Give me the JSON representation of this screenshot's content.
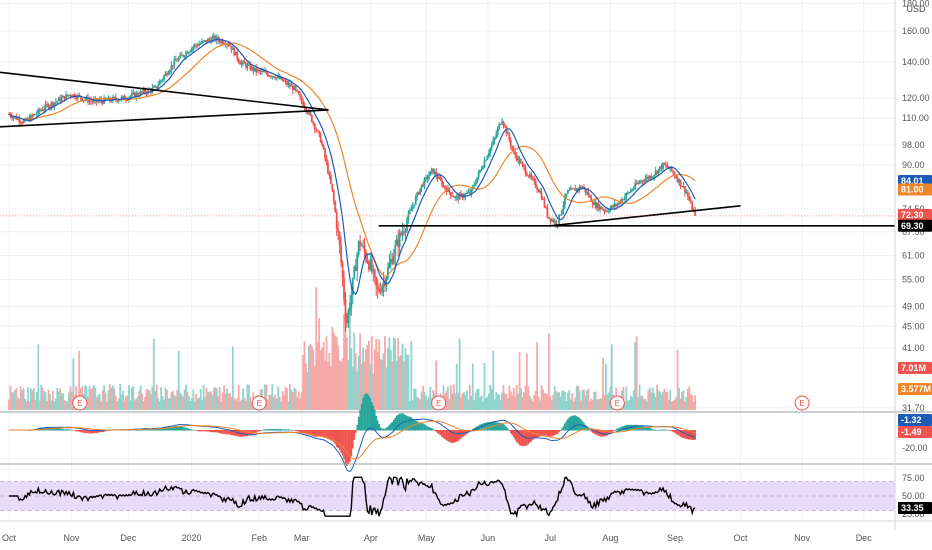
{
  "currency": "USD",
  "price_axis": {
    "ticks": [
      "180.00",
      "160.00",
      "140.00",
      "120.00",
      "110.00",
      "98.00",
      "90.00",
      "74.50",
      "67.50",
      "61.00",
      "55.00",
      "49.00",
      "45.00",
      "41.00",
      "31.70"
    ],
    "scale": "log"
  },
  "price_badges": [
    {
      "text": "84.01",
      "bg": "#1e5bb8",
      "fg": "#ffffff"
    },
    {
      "text": "81.00",
      "bg": "#f0852a",
      "fg": "#ffffff"
    },
    {
      "text": "72.30",
      "bg": "#ef5350",
      "fg": "#ffffff"
    },
    {
      "text": "69.30",
      "bg": "#000000",
      "fg": "#ffffff"
    }
  ],
  "volume_badges": [
    {
      "text": "7.01M",
      "bg": "#ef5350",
      "fg": "#ffffff"
    },
    {
      "text": "3.577M",
      "bg": "#f0852a",
      "fg": "#ffffff"
    }
  ],
  "macd_axis": {
    "ticks": [
      "-20.00"
    ]
  },
  "macd_badges": [
    {
      "text": "-1.32",
      "bg": "#1e5bb8",
      "fg": "#ffffff"
    },
    {
      "text": "-1.49",
      "bg": "#ef5350",
      "fg": "#ffffff"
    }
  ],
  "rsi_axis": {
    "ticks": [
      "75.00",
      "50.00",
      "25.00"
    ]
  },
  "rsi_badge": {
    "text": "33.35",
    "bg": "#000000",
    "fg": "#ffffff"
  },
  "time_axis": [
    "Oct",
    "Nov",
    "Dec",
    "2020",
    "Feb",
    "Mar",
    "Apr",
    "May",
    "Jun",
    "Jul",
    "Aug",
    "Sep",
    "Oct",
    "Nov",
    "Dec"
  ],
  "earnings_marker": "E",
  "colors": {
    "up": "#26a69a",
    "down": "#ef5350",
    "ma_fast": "#1e5bb8",
    "ma_slow": "#f0852a",
    "rsi_band": "#e9dcf8",
    "trendline": "#000000"
  },
  "chart_data": {
    "type": "candlestick",
    "price_scale": "log",
    "price_range": [
      31.7,
      180
    ],
    "last_close": 72.3,
    "ma_fast_last": 84.01,
    "ma_slow_last": 81.0,
    "horizontal_level": 69.3,
    "monthly_closes": [
      {
        "x": "Oct",
        "close": 110
      },
      {
        "x": "Nov",
        "close": 120
      },
      {
        "x": "Dec",
        "close": 118
      },
      {
        "x": "2020",
        "close": 150
      },
      {
        "x": "Feb",
        "close": 135
      },
      {
        "x": "Mar",
        "close": 105
      },
      {
        "x": "Apr",
        "close": 55
      },
      {
        "x": "May",
        "close": 80
      },
      {
        "x": "Jun",
        "close": 92
      },
      {
        "x": "Jul",
        "close": 72
      },
      {
        "x": "Aug",
        "close": 76
      },
      {
        "x": "Sep",
        "close": 85
      },
      {
        "x": "Sep end",
        "close": 72.3
      }
    ],
    "volume_last": "7.01M",
    "volume_ma_last": "3.577M",
    "macd_last": -1.32,
    "macd_signal_last": -1.49,
    "rsi_last": 33.35,
    "rsi_band": [
      30,
      70
    ],
    "grid": true
  }
}
